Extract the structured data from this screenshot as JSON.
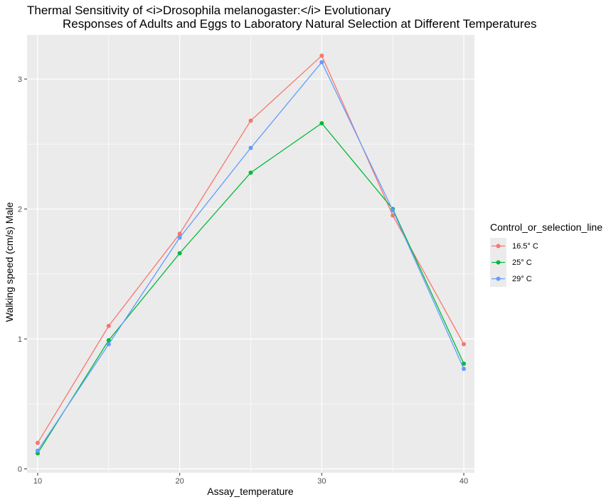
{
  "chart_data": {
    "type": "line",
    "title_line1": "Thermal Sensitivity of <i>Drosophila melanogaster:</i> Evolutionary",
    "title_line2": "Responses of Adults and Eggs to Laboratory Natural Selection at Different Temperatures",
    "xlabel": "Assay_temperature",
    "ylabel": "Walking speed (cm/s) Male",
    "x": [
      10,
      15,
      20,
      25,
      30,
      35,
      40
    ],
    "xlim": [
      9.25,
      40.75
    ],
    "ylim": [
      -0.03,
      3.34
    ],
    "x_ticks": [
      10,
      20,
      30,
      40
    ],
    "x_minor": [
      15,
      25,
      35
    ],
    "y_ticks": [
      0,
      1,
      2,
      3
    ],
    "y_minor": [
      0.5,
      1.5,
      2.5
    ],
    "x_tick_labels": [
      "10",
      "20",
      "30",
      "40"
    ],
    "y_tick_labels": [
      "0",
      "1",
      "2",
      "3"
    ],
    "grid": true,
    "legend": {
      "title": "Control_or_selection_line",
      "position": "right"
    },
    "series": [
      {
        "name": "16.5° C",
        "color": "#F8766D",
        "values": [
          0.2,
          1.1,
          1.81,
          2.68,
          3.18,
          1.95,
          0.96
        ]
      },
      {
        "name": "25° C",
        "color": "#00BA38",
        "values": [
          0.12,
          0.99,
          1.66,
          2.28,
          2.66,
          2.0,
          0.81
        ]
      },
      {
        "name": "29° C",
        "color": "#619CFF",
        "values": [
          0.14,
          0.96,
          1.78,
          2.47,
          3.13,
          1.99,
          0.77
        ]
      }
    ]
  }
}
